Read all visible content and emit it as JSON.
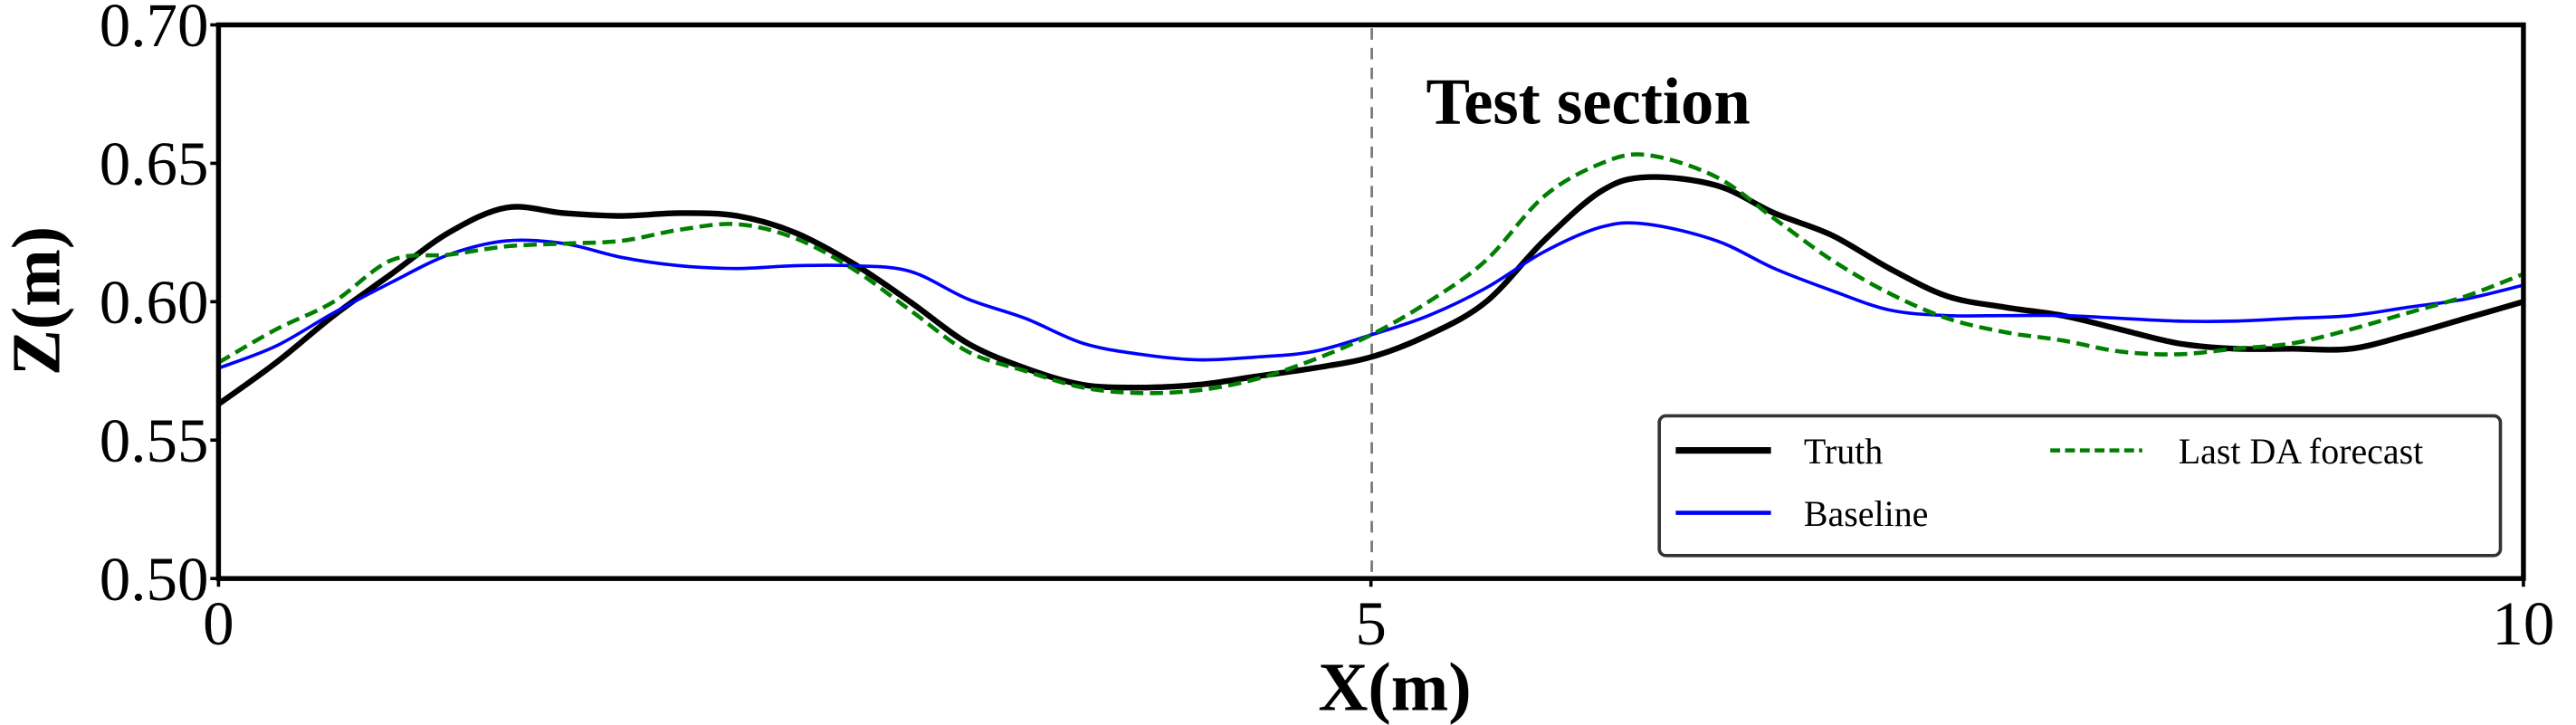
{
  "chart_data": {
    "type": "line",
    "xlabel": "X(m)",
    "ylabel": "Z(m)",
    "xlim": [
      0,
      10
    ],
    "ylim": [
      0.5,
      0.7
    ],
    "xticks": [
      "0",
      "5",
      "10"
    ],
    "yticks": [
      "0.50",
      "0.55",
      "0.60",
      "0.65",
      "0.70"
    ],
    "grid": false,
    "legend_position": "bottom-right",
    "annotation": "Test section",
    "divider_x": 5,
    "x": [
      0,
      0.25,
      0.5,
      0.75,
      1.0,
      1.25,
      1.5,
      1.75,
      2.0,
      2.25,
      2.5,
      2.75,
      3.0,
      3.25,
      3.5,
      3.75,
      4.0,
      4.25,
      4.5,
      4.75,
      5.0,
      5.25,
      5.5,
      5.75,
      6.0,
      6.2,
      6.5,
      6.75,
      7.0,
      7.25,
      7.5,
      7.75,
      8.0,
      8.25,
      8.5,
      8.75,
      9.0,
      9.25,
      9.5,
      9.75,
      10.0
    ],
    "series": [
      {
        "name": "Truth",
        "color": "#000000",
        "style": "solid",
        "values": [
          0.563,
          0.578,
          0.595,
          0.61,
          0.625,
          0.634,
          0.632,
          0.631,
          0.632,
          0.631,
          0.625,
          0.614,
          0.6,
          0.585,
          0.576,
          0.57,
          0.569,
          0.57,
          0.573,
          0.576,
          0.58,
          0.588,
          0.6,
          0.622,
          0.64,
          0.645,
          0.642,
          0.632,
          0.624,
          0.612,
          0.602,
          0.598,
          0.595,
          0.59,
          0.585,
          0.583,
          0.583,
          0.583,
          0.588,
          0.594,
          0.6
        ]
      },
      {
        "name": "Baseline",
        "color": "#0000ff",
        "style": "solid",
        "values": [
          0.576,
          0.584,
          0.596,
          0.607,
          0.617,
          0.622,
          0.621,
          0.616,
          0.613,
          0.612,
          0.613,
          0.613,
          0.611,
          0.601,
          0.594,
          0.585,
          0.581,
          0.579,
          0.58,
          0.582,
          0.588,
          0.595,
          0.605,
          0.618,
          0.627,
          0.628,
          0.622,
          0.612,
          0.604,
          0.597,
          0.595,
          0.595,
          0.595,
          0.594,
          0.593,
          0.593,
          0.594,
          0.595,
          0.598,
          0.601,
          0.606
        ]
      },
      {
        "name": "Last DA forecast",
        "color": "#007f00",
        "style": "dashed",
        "values": [
          0.578,
          0.59,
          0.6,
          0.615,
          0.617,
          0.62,
          0.621,
          0.622,
          0.626,
          0.628,
          0.623,
          0.612,
          0.597,
          0.582,
          0.575,
          0.569,
          0.567,
          0.568,
          0.572,
          0.579,
          0.588,
          0.6,
          0.615,
          0.638,
          0.65,
          0.653,
          0.645,
          0.63,
          0.615,
          0.603,
          0.594,
          0.589,
          0.586,
          0.582,
          0.581,
          0.583,
          0.585,
          0.59,
          0.596,
          0.602,
          0.61
        ]
      }
    ]
  }
}
